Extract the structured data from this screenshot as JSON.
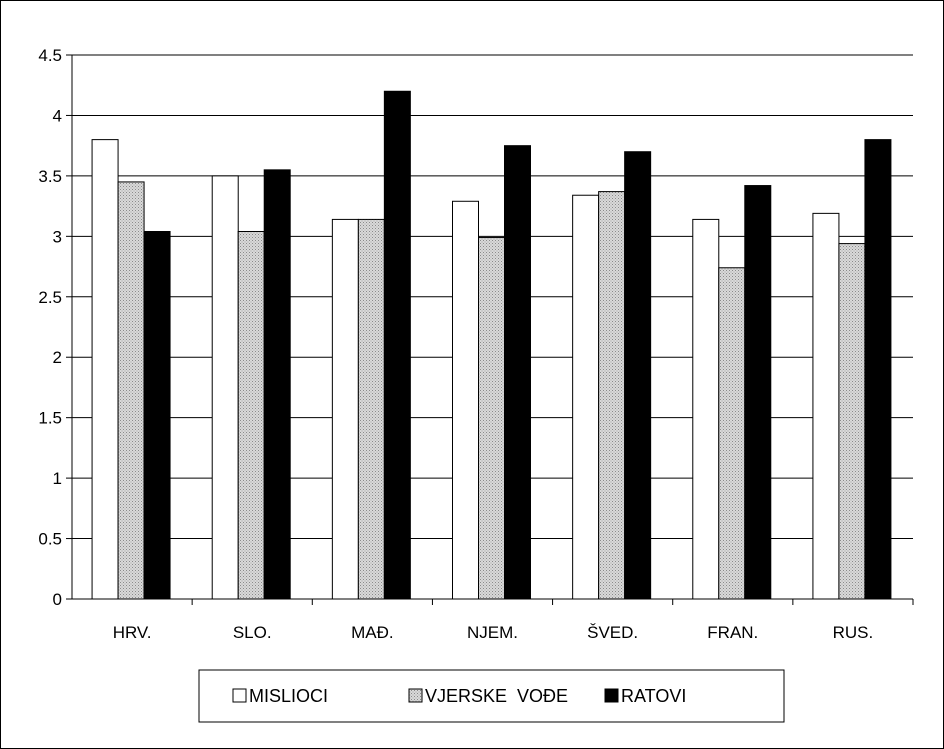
{
  "chart_data": {
    "type": "bar",
    "title": "",
    "xlabel": "",
    "ylabel": "",
    "categories": [
      "HRV.",
      "SLO.",
      "MAĐ.",
      "NJEM.",
      "ŠVED.",
      "FRAN.",
      "RUS."
    ],
    "yticks": [
      "0",
      "0.5",
      "1",
      "1.5",
      "2",
      "2.5",
      "3",
      "3.5",
      "4",
      "4.5"
    ],
    "ylim": [
      0,
      4.5
    ],
    "grid": true,
    "legend_position": "bottom",
    "series": [
      {
        "name": "MISLIOCI",
        "fill": "#ffffff",
        "pattern": "none",
        "values": [
          3.8,
          3.5,
          3.14,
          3.29,
          3.34,
          3.14,
          3.19
        ]
      },
      {
        "name": "VJERSKE  VOĐE",
        "fill": "#c8c8c8",
        "pattern": "dotted",
        "values": [
          3.45,
          3.04,
          3.14,
          2.99,
          3.37,
          2.74,
          2.94
        ]
      },
      {
        "name": "RATOVI",
        "fill": "#000000",
        "pattern": "none",
        "values": [
          3.04,
          3.55,
          4.2,
          3.75,
          3.7,
          3.42,
          3.8
        ]
      }
    ]
  }
}
